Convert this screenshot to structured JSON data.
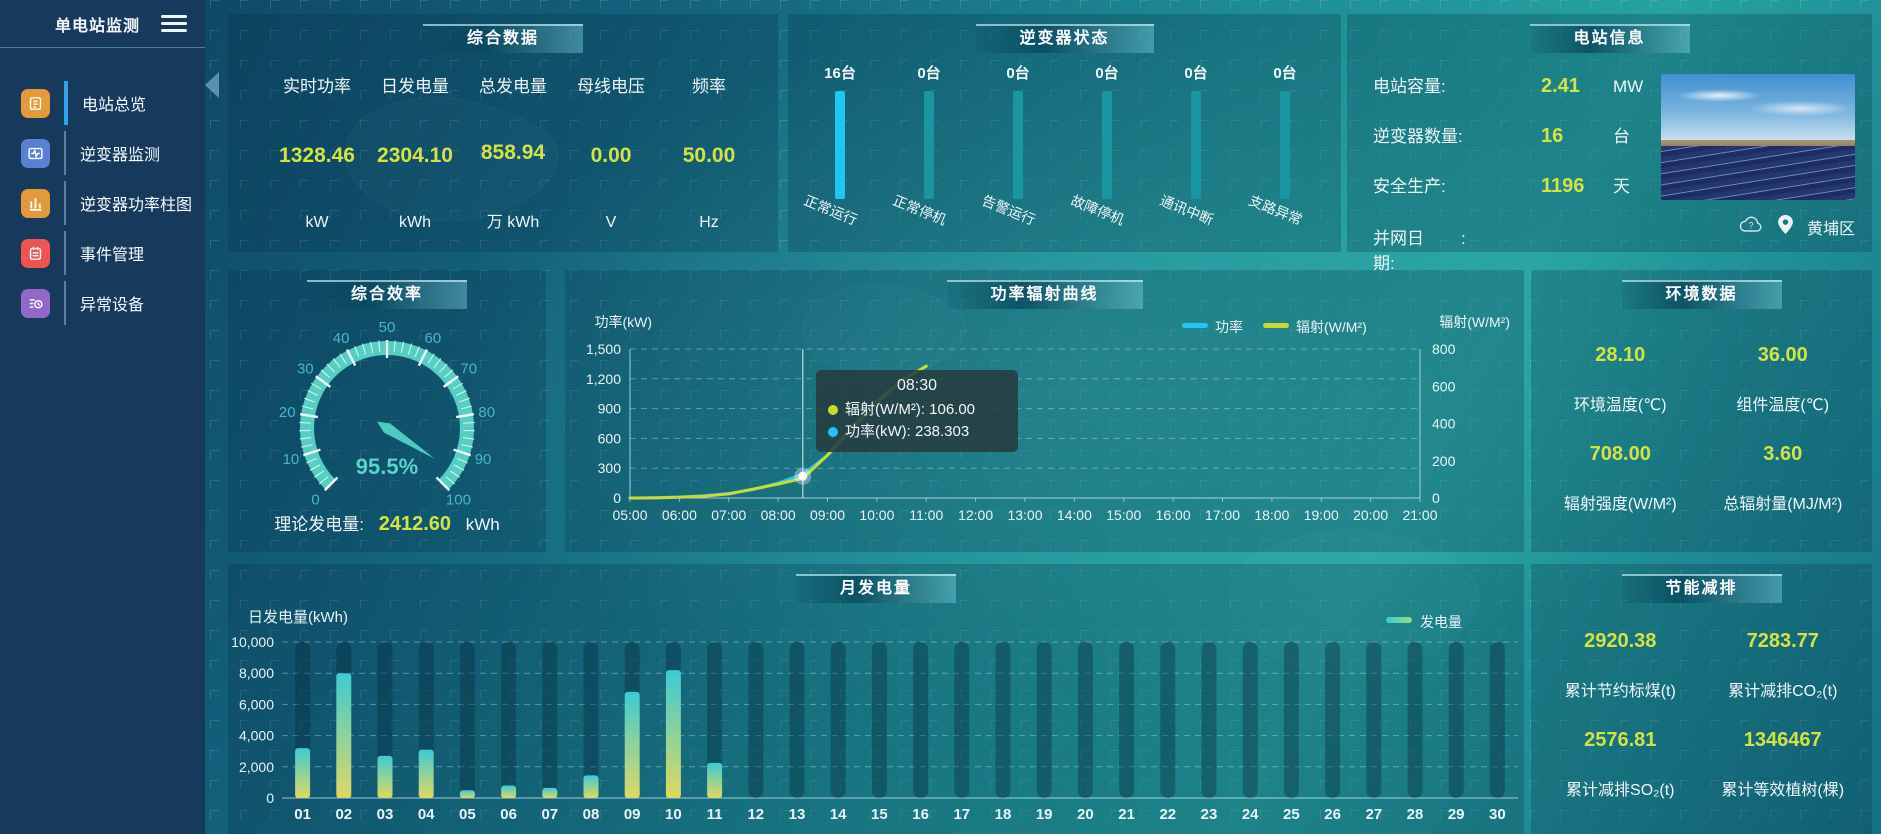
{
  "theme": {
    "accent_yellow": "#d3e345",
    "sidebar_bg": "#17395c",
    "panel_bg": "rgba(8,48,70,0.26)",
    "cyan": "#23c4f3",
    "teal": "#1a97a1",
    "arc_teal": "#56cec4"
  },
  "sidebar": {
    "title": "单电站监测",
    "items": [
      {
        "label": "电站总览",
        "icon": "overview-icon",
        "color": "#e29a3c",
        "active": true
      },
      {
        "label": "逆变器监测",
        "icon": "inverter-monitor-icon",
        "color": "#5b7fd4",
        "active": false
      },
      {
        "label": "逆变器功率柱图",
        "icon": "inverter-power-bar-icon",
        "color": "#e29a3c",
        "active": false
      },
      {
        "label": "事件管理",
        "icon": "event-management-icon",
        "color": "#f05450",
        "active": false
      },
      {
        "label": "异常设备",
        "icon": "abnormal-device-icon",
        "color": "#9168c8",
        "active": false
      }
    ]
  },
  "summary": {
    "title": "综合数据",
    "metrics": [
      {
        "label": "实时功率",
        "value": "1328.46",
        "unit": "kW"
      },
      {
        "label": "日发电量",
        "value": "2304.10",
        "unit": "kWh"
      },
      {
        "label": "总发电量",
        "value": "858.94",
        "unit": "万 kWh"
      },
      {
        "label": "母线电压",
        "value": "0.00",
        "unit": "V"
      },
      {
        "label": "频率",
        "value": "50.00",
        "unit": "Hz"
      }
    ]
  },
  "inverter_status": {
    "title": "逆变器状态",
    "colors": {
      "highlight": "#1fc6f5",
      "normal": "#1a96a0"
    },
    "bars": [
      {
        "count": "16台",
        "label": "正常运行",
        "highlight": true
      },
      {
        "count": "0台",
        "label": "正常停机",
        "highlight": false
      },
      {
        "count": "0台",
        "label": "告警运行",
        "highlight": false
      },
      {
        "count": "0台",
        "label": "故障停机",
        "highlight": false
      },
      {
        "count": "0台",
        "label": "通讯中断",
        "highlight": false
      },
      {
        "count": "0台",
        "label": "支路异常",
        "highlight": false
      }
    ]
  },
  "station_info": {
    "title": "电站信息",
    "rows": [
      {
        "label": "电站容量:",
        "value": "2.41",
        "unit": "MW"
      },
      {
        "label": "逆变器数量:",
        "value": "16",
        "unit": "台"
      },
      {
        "label": "安全生产:",
        "value": "1196",
        "unit": "天"
      },
      {
        "label": "并网日期:",
        "value": ":",
        "unit": ""
      }
    ],
    "location": "黄埔区"
  },
  "efficiency": {
    "title": "综合效率",
    "theory": {
      "label": "理论发电量:",
      "value": "2412.60",
      "unit": "kWh"
    }
  },
  "env_data": {
    "title": "环境数据",
    "items": [
      {
        "value": "28.10",
        "label": "环境温度(℃)"
      },
      {
        "value": "36.00",
        "label": "组件温度(℃)"
      },
      {
        "value": "708.00",
        "label": "辐射强度(W/M²)"
      },
      {
        "value": "3.60",
        "label": "总辐射量(MJ/M²)"
      }
    ]
  },
  "energy_saving": {
    "title": "节能减排",
    "items": [
      {
        "value": "2920.38",
        "label": "累计节约标煤(t)"
      },
      {
        "value": "7283.77",
        "label": "累计减排CO₂(t)"
      },
      {
        "value": "2576.81",
        "label": "累计减排SO₂(t)"
      },
      {
        "value": "1346467",
        "label": "累计等效植树(棵)"
      }
    ]
  },
  "chart_data": [
    {
      "id": "efficiency_gauge",
      "type": "gauge",
      "title": "综合效率",
      "min": 0,
      "max": 100,
      "value": 95.5,
      "value_label": "95.5%",
      "tick_labels": [
        0,
        10,
        20,
        30,
        40,
        50,
        60,
        70,
        80,
        90,
        100
      ],
      "arc_color": "#56cec4",
      "label_color": "#49b5c9"
    },
    {
      "id": "power_radiation_curve",
      "type": "line",
      "title": "功率辐射曲线",
      "x_ticks": [
        "05:00",
        "06:00",
        "07:00",
        "08:00",
        "09:00",
        "10:00",
        "11:00",
        "12:00",
        "13:00",
        "14:00",
        "15:00",
        "16:00",
        "17:00",
        "18:00",
        "19:00",
        "20:00",
        "21:00"
      ],
      "left_axis": {
        "label": "功率(kW)",
        "min": 0,
        "max": 1500,
        "ticks": [
          "0",
          "300",
          "600",
          "900",
          "1,200",
          "1,500"
        ]
      },
      "right_axis": {
        "label": "辐射(W/M²)",
        "min": 0,
        "max": 800,
        "ticks": [
          "0",
          "200",
          "400",
          "600",
          "800"
        ]
      },
      "legend_position": "top-right",
      "grid": "dashed",
      "series": [
        {
          "name": "功率",
          "color": "#23c4f3",
          "axis": "left",
          "points": [
            [
              "05:00",
              0
            ],
            [
              "05:30",
              3
            ],
            [
              "06:00",
              10
            ],
            [
              "06:30",
              22
            ],
            [
              "07:00",
              45
            ],
            [
              "07:30",
              85
            ],
            [
              "08:00",
              150
            ],
            [
              "08:30",
              238.303
            ],
            [
              "09:00",
              430
            ],
            [
              "09:30",
              680
            ],
            [
              "10:00",
              950
            ],
            [
              "10:30",
              1180
            ],
            [
              "11:00",
              1328
            ]
          ]
        },
        {
          "name": "辐射(W/M²)",
          "color": "#c9da33",
          "axis": "right",
          "points": [
            [
              "05:00",
              0
            ],
            [
              "05:30",
              1
            ],
            [
              "06:00",
              4
            ],
            [
              "06:30",
              10
            ],
            [
              "07:00",
              22
            ],
            [
              "07:30",
              48
            ],
            [
              "08:00",
              75
            ],
            [
              "08:30",
              106
            ],
            [
              "09:00",
              230
            ],
            [
              "09:30",
              380
            ],
            [
              "10:00",
              520
            ],
            [
              "10:30",
              630
            ],
            [
              "11:00",
              708
            ]
          ]
        }
      ],
      "tooltip": {
        "time": "08:30",
        "rows": [
          {
            "series_index": 1,
            "text": "辐射(W/M²): 106.00"
          },
          {
            "series_index": 0,
            "text": "功率(kW): 238.303"
          }
        ]
      }
    },
    {
      "id": "monthly_generation",
      "type": "bar",
      "title": "月发电量",
      "ylabel": "日发电量(kWh)",
      "legend": "发电量",
      "ylim": [
        0,
        10000
      ],
      "yticks": [
        "0",
        "2,000",
        "4,000",
        "6,000",
        "8,000",
        "10,000"
      ],
      "categories": [
        "01",
        "02",
        "03",
        "04",
        "05",
        "06",
        "07",
        "08",
        "09",
        "10",
        "11",
        "12",
        "13",
        "14",
        "15",
        "16",
        "17",
        "18",
        "19",
        "20",
        "21",
        "22",
        "23",
        "24",
        "25",
        "26",
        "27",
        "28",
        "29",
        "30"
      ],
      "values": [
        3200,
        8000,
        2700,
        3100,
        500,
        800,
        650,
        1450,
        6800,
        8200,
        2250,
        0,
        0,
        0,
        0,
        0,
        0,
        0,
        0,
        0,
        0,
        0,
        0,
        0,
        0,
        0,
        0,
        0,
        0,
        0
      ],
      "bar_gradient": [
        "#3ecad5",
        "#ded961"
      ]
    }
  ]
}
